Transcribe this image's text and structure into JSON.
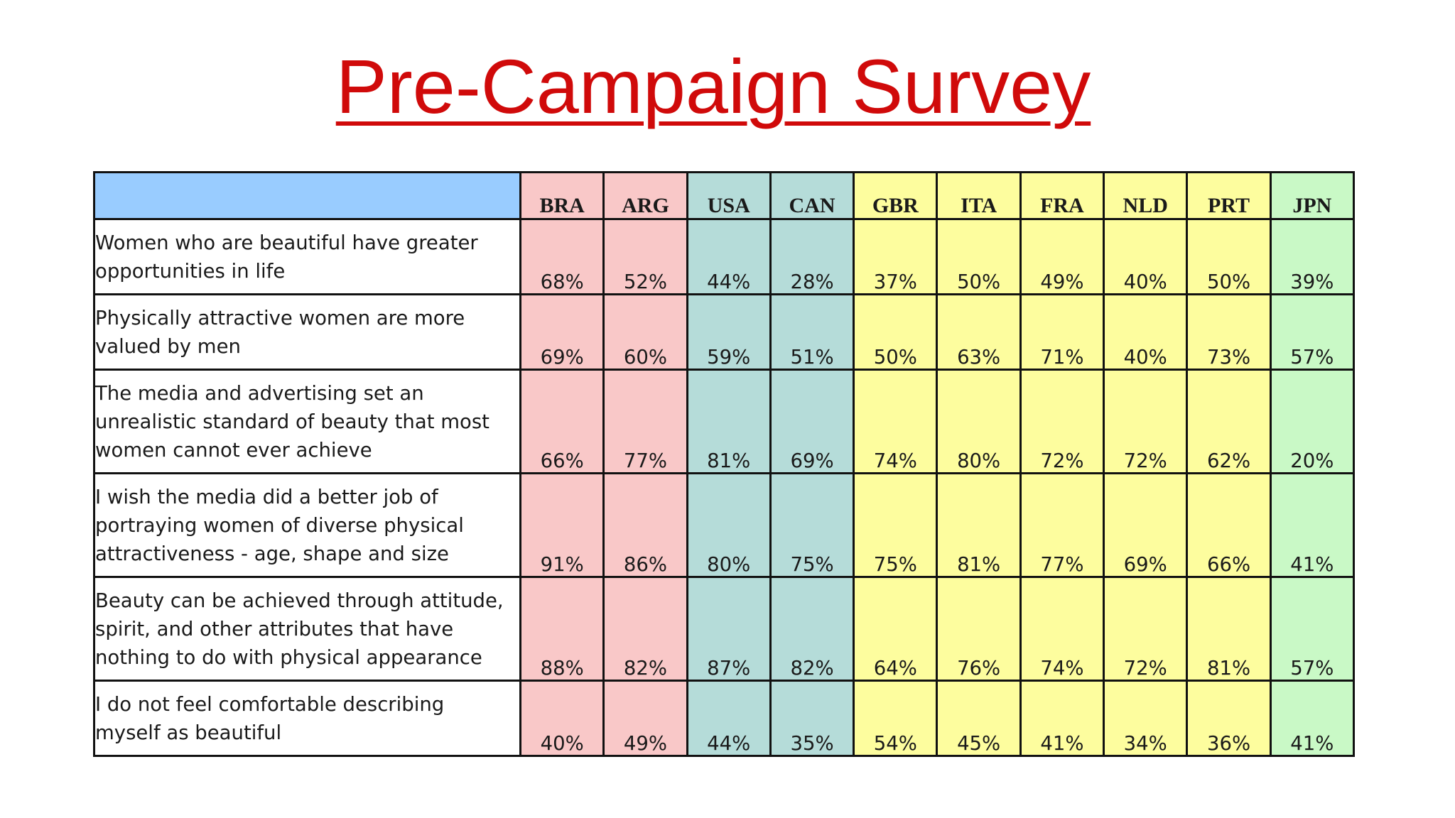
{
  "title": "Pre-Campaign Survey",
  "colors": {
    "title": "#d00a0a",
    "header_corner": "#99ccff",
    "group_pink": "#f9c8c8",
    "group_teal": "#b5dcd9",
    "group_yellow": "#fdfd9e",
    "group_green": "#c9f9c6"
  },
  "columns": [
    {
      "code": "BRA",
      "group": "pink"
    },
    {
      "code": "ARG",
      "group": "pink"
    },
    {
      "code": "USA",
      "group": "teal"
    },
    {
      "code": "CAN",
      "group": "teal"
    },
    {
      "code": "GBR",
      "group": "yellow"
    },
    {
      "code": "ITA",
      "group": "yellow"
    },
    {
      "code": "FRA",
      "group": "yellow"
    },
    {
      "code": "NLD",
      "group": "yellow"
    },
    {
      "code": "PRT",
      "group": "yellow"
    },
    {
      "code": "JPN",
      "group": "green"
    }
  ],
  "rows": [
    {
      "label_lines": [
        "Women who are beautiful have greater",
        "opportunities in life"
      ],
      "values": [
        "68%",
        "52%",
        "44%",
        "28%",
        "37%",
        "50%",
        "49%",
        "40%",
        "50%",
        "39%"
      ]
    },
    {
      "label_lines": [
        "Physically attractive women are more",
        "valued by men"
      ],
      "values": [
        "69%",
        "60%",
        "59%",
        "51%",
        "50%",
        "63%",
        "71%",
        "40%",
        "73%",
        "57%"
      ]
    },
    {
      "label_lines": [
        "The media and advertising set an",
        "unrealistic standard of beauty that most",
        "women cannot ever achieve"
      ],
      "values": [
        "66%",
        "77%",
        "81%",
        "69%",
        "74%",
        "80%",
        "72%",
        "72%",
        "62%",
        "20%"
      ]
    },
    {
      "label_lines": [
        "I wish the media did a better job of",
        "portraying women of diverse physical",
        "attractiveness - age, shape and size"
      ],
      "values": [
        "91%",
        "86%",
        "80%",
        "75%",
        "75%",
        "81%",
        "77%",
        "69%",
        "66%",
        "41%"
      ]
    },
    {
      "label_lines": [
        "Beauty can be achieved through attitude,",
        "spirit, and other attributes that have",
        "nothing to do with physical appearance"
      ],
      "values": [
        "88%",
        "82%",
        "87%",
        "82%",
        "64%",
        "76%",
        "74%",
        "72%",
        "81%",
        "57%"
      ]
    },
    {
      "label_lines": [
        "I do not feel comfortable describing",
        "myself as beautiful"
      ],
      "values": [
        "40%",
        "49%",
        "44%",
        "35%",
        "54%",
        "45%",
        "41%",
        "34%",
        "36%",
        "41%"
      ]
    }
  ]
}
